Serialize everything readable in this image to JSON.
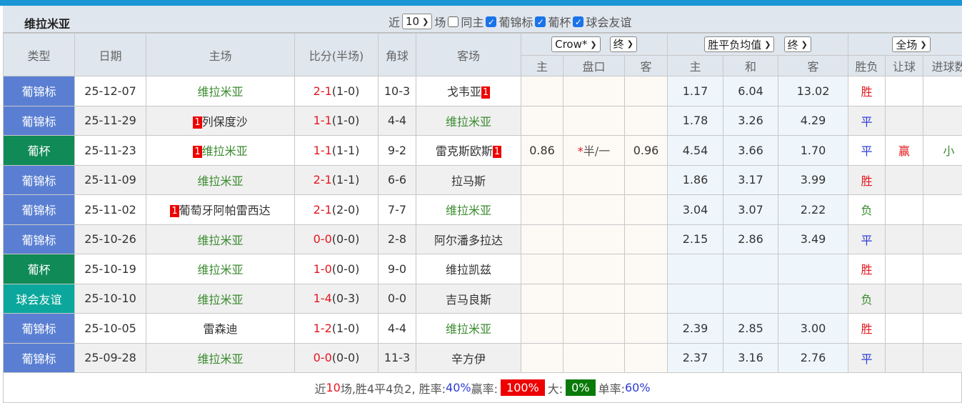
{
  "title": "维拉米亚",
  "filters": {
    "recent_label": "近",
    "count": "10",
    "games_label": "场",
    "same_host": "同主",
    "same_host_checked": false,
    "competitions": [
      {
        "label": "葡锦标",
        "checked": true
      },
      {
        "label": "葡杯",
        "checked": true
      },
      {
        "label": "球会友谊",
        "checked": true
      }
    ]
  },
  "header": {
    "type": "类型",
    "date": "日期",
    "home": "主场",
    "score": "比分(半场)",
    "corner": "角球",
    "away": "客场",
    "company": "Crow*",
    "asian_stage": "终",
    "euro_type": "胜平负均值",
    "euro_stage": "终",
    "period": "全场",
    "sub": {
      "ah_home": "主",
      "ah_line": "盘口",
      "ah_away": "客",
      "eu_home": "主",
      "eu_draw": "和",
      "eu_away": "客",
      "result": "胜负",
      "handicap": "让球",
      "goals": "进球数"
    }
  },
  "colors": {
    "葡锦标": "#5a7fd2",
    "葡杯": "#108a56",
    "球会友谊": "#0ba79c",
    "win": "#e4171d",
    "draw": "#2b3bd6",
    "loss": "#3a8a2e"
  },
  "rows": [
    {
      "type": "葡锦标",
      "date": "25-12-07",
      "home": "维拉米亚",
      "home_rank": "",
      "home_is_team": true,
      "score": "2-1",
      "half": "(1-0)",
      "corner": "10-3",
      "away": "戈韦亚",
      "away_rank": "1",
      "away_is_team": false,
      "ah_home": "",
      "ah_line": "",
      "ah_away": "",
      "eu_home": "1.17",
      "eu_draw": "6.04",
      "eu_away": "13.02",
      "result": "胜",
      "handicap": "",
      "goals": ""
    },
    {
      "type": "葡锦标",
      "date": "25-11-29",
      "home": "列保度沙",
      "home_rank": "1",
      "home_is_team": false,
      "score": "1-1",
      "half": "(1-0)",
      "corner": "4-4",
      "away": "维拉米亚",
      "away_rank": "",
      "away_is_team": true,
      "ah_home": "",
      "ah_line": "",
      "ah_away": "",
      "eu_home": "1.78",
      "eu_draw": "3.26",
      "eu_away": "4.29",
      "result": "平",
      "handicap": "",
      "goals": ""
    },
    {
      "type": "葡杯",
      "date": "25-11-23",
      "home": "维拉米亚",
      "home_rank": "1",
      "home_is_team": true,
      "score": "1-1",
      "half": "(1-1)",
      "corner": "9-2",
      "away": "雷克斯欧斯",
      "away_rank": "1",
      "away_is_team": false,
      "ah_home": "0.86",
      "ah_line_mark": "*",
      "ah_line": "半/一",
      "ah_away": "0.96",
      "eu_home": "4.54",
      "eu_draw": "3.66",
      "eu_away": "1.70",
      "result": "平",
      "handicap": "赢",
      "goals": "小"
    },
    {
      "type": "葡锦标",
      "date": "25-11-09",
      "home": "维拉米亚",
      "home_rank": "",
      "home_is_team": true,
      "score": "2-1",
      "half": "(1-1)",
      "corner": "6-6",
      "away": "拉马斯",
      "away_rank": "",
      "away_is_team": false,
      "ah_home": "",
      "ah_line": "",
      "ah_away": "",
      "eu_home": "1.86",
      "eu_draw": "3.17",
      "eu_away": "3.99",
      "result": "胜",
      "handicap": "",
      "goals": ""
    },
    {
      "type": "葡锦标",
      "date": "25-11-02",
      "home": "葡萄牙阿帕雷西达",
      "home_rank": "1",
      "home_is_team": false,
      "score": "2-1",
      "half": "(2-0)",
      "corner": "7-7",
      "away": "维拉米亚",
      "away_rank": "",
      "away_is_team": true,
      "ah_home": "",
      "ah_line": "",
      "ah_away": "",
      "eu_home": "3.04",
      "eu_draw": "3.07",
      "eu_away": "2.22",
      "result": "负",
      "handicap": "",
      "goals": ""
    },
    {
      "type": "葡锦标",
      "date": "25-10-26",
      "home": "维拉米亚",
      "home_rank": "",
      "home_is_team": true,
      "score": "0-0",
      "half": "(0-0)",
      "corner": "2-8",
      "away": "阿尔潘多拉达",
      "away_rank": "",
      "away_is_team": false,
      "ah_home": "",
      "ah_line": "",
      "ah_away": "",
      "eu_home": "2.15",
      "eu_draw": "2.86",
      "eu_away": "3.49",
      "result": "平",
      "handicap": "",
      "goals": ""
    },
    {
      "type": "葡杯",
      "date": "25-10-19",
      "home": "维拉米亚",
      "home_rank": "",
      "home_is_team": true,
      "score": "1-0",
      "half": "(0-0)",
      "corner": "9-0",
      "away": "维拉凯兹",
      "away_rank": "",
      "away_is_team": false,
      "ah_home": "",
      "ah_line": "",
      "ah_away": "",
      "eu_home": "",
      "eu_draw": "",
      "eu_away": "",
      "result": "胜",
      "handicap": "",
      "goals": ""
    },
    {
      "type": "球会友谊",
      "date": "25-10-10",
      "home": "维拉米亚",
      "home_rank": "",
      "home_is_team": true,
      "score": "1-4",
      "half": "(0-3)",
      "corner": "0-0",
      "away": "吉马良斯",
      "away_rank": "",
      "away_is_team": false,
      "ah_home": "",
      "ah_line": "",
      "ah_away": "",
      "eu_home": "",
      "eu_draw": "",
      "eu_away": "",
      "result": "负",
      "handicap": "",
      "goals": ""
    },
    {
      "type": "葡锦标",
      "date": "25-10-05",
      "home": "雷森迪",
      "home_rank": "",
      "home_is_team": false,
      "score": "1-2",
      "half": "(1-0)",
      "corner": "4-4",
      "away": "维拉米亚",
      "away_rank": "",
      "away_is_team": true,
      "ah_home": "",
      "ah_line": "",
      "ah_away": "",
      "eu_home": "2.39",
      "eu_draw": "2.85",
      "eu_away": "3.00",
      "result": "胜",
      "handicap": "",
      "goals": ""
    },
    {
      "type": "葡锦标",
      "date": "25-09-28",
      "home": "维拉米亚",
      "home_rank": "",
      "home_is_team": true,
      "score": "0-0",
      "half": "(0-0)",
      "corner": "11-3",
      "away": "辛方伊",
      "away_rank": "",
      "away_is_team": false,
      "ah_home": "",
      "ah_line": "",
      "ah_away": "",
      "eu_home": "2.37",
      "eu_draw": "3.16",
      "eu_away": "2.76",
      "result": "平",
      "handicap": "",
      "goals": ""
    }
  ],
  "summary": {
    "p1": "近",
    "n": "10",
    "p2": "场,胜4平4负2, 胜率:",
    "win_rate": "40%",
    "p3": " 赢率:",
    "cover_rate": "100%",
    "p4": " 大:",
    "over_rate": "0%",
    "p5": " 单率:",
    "odd_rate": "60%"
  }
}
